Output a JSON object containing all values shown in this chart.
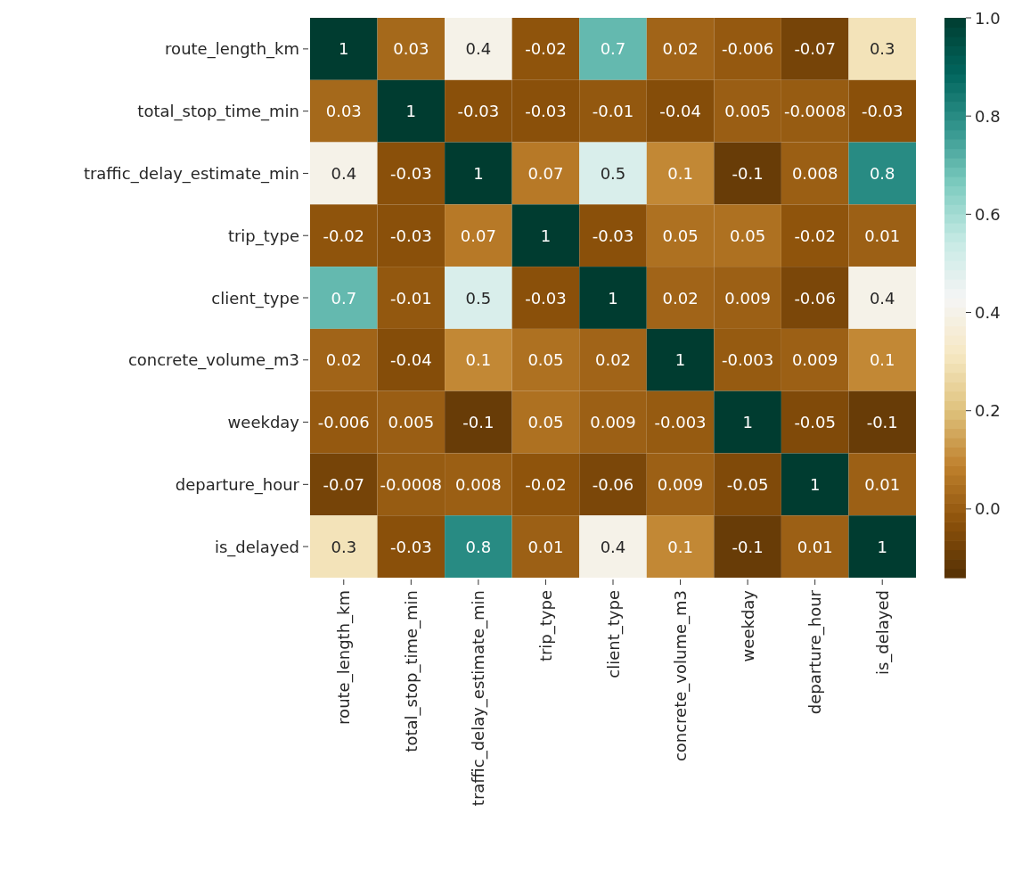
{
  "chart_data": {
    "type": "heatmap",
    "categories": [
      "route_length_km",
      "total_stop_time_min",
      "traffic_delay_estimate_min",
      "trip_type",
      "client_type",
      "concrete_volume_m3",
      "weekday",
      "departure_hour",
      "is_delayed"
    ],
    "y_categories": [
      "route_length_km",
      "total_stop_time_min",
      "traffic_delay_estimate_min",
      "trip_type",
      "client_type",
      "concrete_volume_m3",
      "weekday",
      "departure_hour",
      "is_delayed"
    ],
    "cells": [
      [
        1,
        0.03,
        0.4,
        -0.02,
        0.7,
        0.02,
        -0.006,
        -0.07,
        0.3
      ],
      [
        0.03,
        1,
        -0.03,
        -0.03,
        -0.01,
        -0.04,
        0.005,
        -0.0008,
        -0.03
      ],
      [
        0.4,
        -0.03,
        1,
        0.07,
        0.5,
        0.1,
        -0.1,
        0.008,
        0.8
      ],
      [
        -0.02,
        -0.03,
        0.07,
        1,
        -0.03,
        0.05,
        0.05,
        -0.02,
        0.01
      ],
      [
        0.7,
        -0.01,
        0.5,
        -0.03,
        1,
        0.02,
        0.009,
        -0.06,
        0.4
      ],
      [
        0.02,
        -0.04,
        0.1,
        0.05,
        0.02,
        1,
        -0.003,
        0.009,
        0.1
      ],
      [
        -0.006,
        0.005,
        -0.1,
        0.05,
        0.009,
        -0.003,
        1,
        -0.05,
        -0.1
      ],
      [
        -0.07,
        -0.0008,
        0.008,
        -0.02,
        -0.06,
        0.009,
        -0.05,
        1,
        0.01
      ],
      [
        0.3,
        -0.03,
        0.8,
        0.01,
        0.4,
        0.1,
        -0.1,
        0.01,
        1
      ]
    ],
    "clim": [
      -0.14,
      1
    ],
    "cticks": [
      {
        "value": 0,
        "label": "0.0"
      },
      {
        "value": 0.2,
        "label": "0.2"
      },
      {
        "value": 0.4,
        "label": "0.4"
      },
      {
        "value": 0.6,
        "label": "0.6"
      },
      {
        "value": 0.8,
        "label": "0.8"
      },
      {
        "value": 1,
        "label": "1.0"
      }
    ],
    "data_labels": true
  }
}
